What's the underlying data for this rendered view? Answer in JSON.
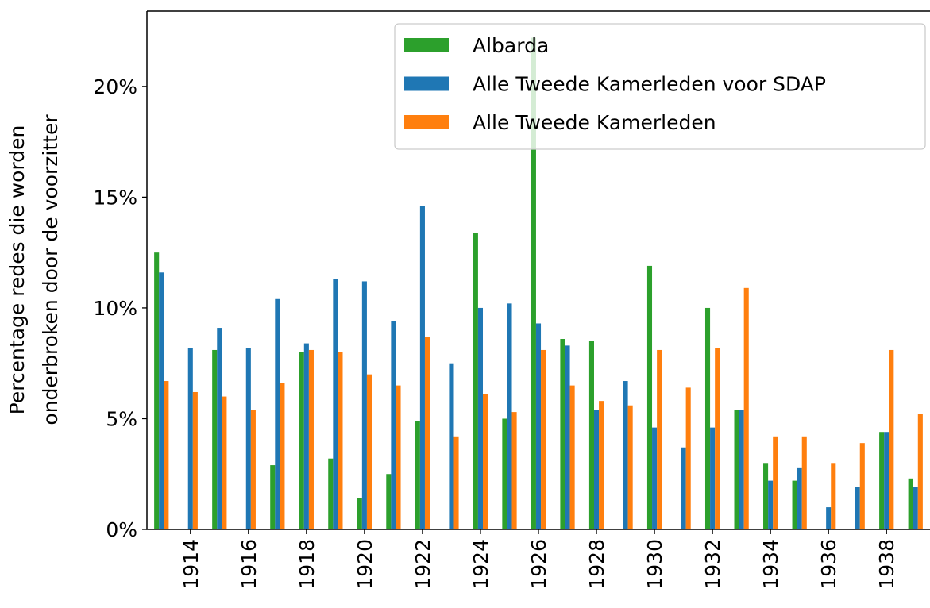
{
  "chart_data": {
    "type": "bar",
    "ylabel": [
      "Percentage redes die worden",
      "onderbroken door de voorzitter"
    ],
    "categories": [
      null,
      "1914",
      null,
      "1916",
      null,
      "1918",
      null,
      "1920",
      null,
      "1922",
      null,
      "1924",
      null,
      "1926",
      null,
      "1928",
      null,
      "1930",
      null,
      "1932",
      null,
      "1934",
      null,
      "1936",
      null,
      "1938",
      null
    ],
    "series": [
      {
        "name": "Albarda",
        "color": "#2ca02c",
        "values": [
          12.5,
          null,
          8.1,
          null,
          2.9,
          8.0,
          3.2,
          1.4,
          2.5,
          4.9,
          null,
          13.4,
          5.0,
          22.2,
          8.6,
          8.5,
          null,
          11.9,
          null,
          10.0,
          5.4,
          3.0,
          2.2,
          null,
          null,
          4.4,
          2.3
        ]
      },
      {
        "name": "Alle Tweede Kamerleden voor SDAP",
        "color": "#1f77b4",
        "values": [
          11.6,
          8.2,
          9.1,
          8.2,
          10.4,
          8.4,
          11.3,
          11.2,
          9.4,
          14.6,
          7.5,
          10.0,
          10.2,
          9.3,
          8.3,
          5.4,
          6.7,
          4.6,
          3.7,
          4.6,
          5.4,
          2.2,
          2.8,
          1.0,
          1.9,
          4.4,
          1.9
        ]
      },
      {
        "name": "Alle Tweede Kamerleden",
        "color": "#ff7f0e",
        "values": [
          6.7,
          6.2,
          6.0,
          5.4,
          6.6,
          8.1,
          8.0,
          7.0,
          6.5,
          8.7,
          4.2,
          6.1,
          5.3,
          8.1,
          6.5,
          5.8,
          5.6,
          8.1,
          6.4,
          8.2,
          10.9,
          4.2,
          4.2,
          3.0,
          3.9,
          8.1,
          5.2
        ]
      }
    ],
    "ylim": [
      0,
      23.4
    ],
    "yticks": [
      {
        "value": 0,
        "label": "0%"
      },
      {
        "value": 5,
        "label": "5%"
      },
      {
        "value": 10,
        "label": "10%"
      },
      {
        "value": 15,
        "label": "15%"
      },
      {
        "value": 20,
        "label": "20%"
      }
    ],
    "legend": "upper right"
  }
}
